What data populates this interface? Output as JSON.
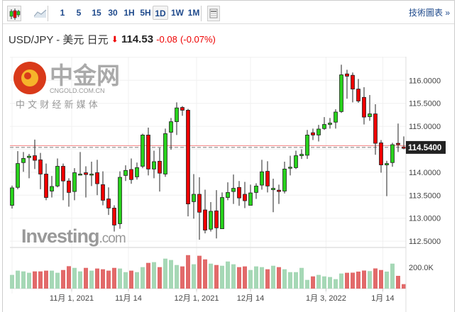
{
  "toolbar": {
    "chart_types": [
      {
        "icon": "candlestick-icon"
      },
      {
        "icon": "area-chart-icon"
      }
    ],
    "intervals": [
      "1",
      "5",
      "15",
      "30",
      "1H",
      "5H",
      "1D",
      "1W",
      "1M"
    ],
    "selected_interval": "1D",
    "layout_icon": "layout-icon",
    "tech_link": "技術圖表 »"
  },
  "header": {
    "symbol": "USD/JPY - 美元 日元",
    "direction": "down",
    "price": "114.53",
    "change": "-0.08",
    "change_pct": "(-0.07%)"
  },
  "colors": {
    "up": "#28d21c",
    "down": "#ee0000",
    "vol_up": "#a6d8b6",
    "vol_down": "#e26a6a",
    "link": "#1f4a8c"
  },
  "watermark": "Investing.com",
  "overlay_logo": {
    "name": "中金网",
    "url_text": "CNGOLD.COM.CN",
    "tagline": "中 文 财 经 新 媒 体"
  },
  "chart_data": {
    "type": "candlestick",
    "y_ticks": [
      "116.0000",
      "115.5000",
      "115.0000",
      "114.0000",
      "113.5000",
      "113.0000",
      "112.5000"
    ],
    "y_tick_values": [
      116,
      115.5,
      115,
      114,
      113.5,
      113,
      112.5
    ],
    "ylim": [
      112.4,
      116.4
    ],
    "current_price_label": "114.5400",
    "current_price": 114.54,
    "prev_line": 114.58,
    "volume_tick": "200.0K",
    "volume_tick_value": 200,
    "x_labels": [
      {
        "label": "11月 1, 2021",
        "index": 11.5
      },
      {
        "label": "11月 14",
        "index": 21.5
      },
      {
        "label": "12月 1, 2021",
        "index": 33.5
      },
      {
        "label": "12月 14",
        "index": 43
      },
      {
        "label": "1月 3, 2022",
        "index": 56.3
      },
      {
        "label": "1月 14",
        "index": 66.3
      }
    ],
    "candles": [
      [
        113.28,
        113.71,
        113.21,
        113.66,
        129
      ],
      [
        113.67,
        114.46,
        113.63,
        114.19,
        169
      ],
      [
        114.21,
        114.44,
        114.01,
        114.3,
        162
      ],
      [
        114.32,
        114.4,
        113.87,
        114.35,
        149
      ],
      [
        114.36,
        114.71,
        114.07,
        114.26,
        162
      ],
      [
        114.27,
        114.42,
        113.63,
        113.96,
        162
      ],
      [
        113.96,
        114.19,
        113.39,
        113.45,
        169
      ],
      [
        113.59,
        113.92,
        113.45,
        113.69,
        169
      ],
      [
        113.7,
        114.3,
        113.67,
        114.13,
        149
      ],
      [
        114.13,
        114.19,
        113.39,
        113.81,
        175
      ],
      [
        113.81,
        113.87,
        113.25,
        113.56,
        211
      ],
      [
        113.58,
        114.09,
        113.39,
        113.99,
        195
      ],
      [
        113.94,
        114.44,
        113.93,
        113.96,
        162
      ],
      [
        113.99,
        114.13,
        113.45,
        113.95,
        195
      ],
      [
        113.94,
        114.23,
        113.7,
        113.96,
        169
      ],
      [
        113.99,
        114.27,
        113.5,
        113.75,
        189
      ],
      [
        113.73,
        114.02,
        113.28,
        113.39,
        182
      ],
      [
        113.42,
        113.67,
        113.07,
        113.22,
        169
      ],
      [
        113.22,
        113.28,
        112.71,
        112.85,
        195
      ],
      [
        112.88,
        114.02,
        112.77,
        113.89,
        189
      ],
      [
        113.93,
        114.15,
        113.81,
        114.04,
        155
      ],
      [
        114.06,
        114.3,
        113.75,
        113.84,
        169
      ],
      [
        113.9,
        114.21,
        113.84,
        114.1,
        155
      ],
      [
        114.13,
        114.84,
        114.09,
        114.81,
        202
      ],
      [
        114.81,
        114.97,
        113.93,
        114.07,
        242
      ],
      [
        114.07,
        114.47,
        113.87,
        114.23,
        249
      ],
      [
        114.24,
        114.53,
        113.58,
        113.98,
        202
      ],
      [
        113.96,
        114.95,
        113.9,
        114.84,
        282
      ],
      [
        114.87,
        115.18,
        114.49,
        115.1,
        269
      ],
      [
        115.1,
        115.52,
        114.81,
        115.4,
        222
      ],
      [
        115.41,
        115.44,
        115.23,
        115.35,
        209
      ],
      [
        115.35,
        115.38,
        113.04,
        113.31,
        315
      ],
      [
        113.36,
        113.96,
        112.99,
        113.52,
        229
      ],
      [
        113.52,
        113.89,
        112.53,
        113.13,
        309
      ],
      [
        113.18,
        113.62,
        112.67,
        112.74,
        275
      ],
      [
        112.76,
        113.35,
        112.71,
        113.15,
        235
      ],
      [
        113.16,
        113.61,
        112.56,
        112.79,
        222
      ],
      [
        112.77,
        113.56,
        112.77,
        113.45,
        215
      ],
      [
        113.45,
        113.78,
        113.39,
        113.56,
        255
      ],
      [
        113.58,
        113.95,
        113.31,
        113.65,
        229
      ],
      [
        113.67,
        113.81,
        113.27,
        113.44,
        202
      ],
      [
        113.52,
        113.79,
        113.22,
        113.38,
        209
      ],
      [
        113.28,
        113.73,
        113.28,
        113.55,
        175
      ],
      [
        113.56,
        113.76,
        113.42,
        113.7,
        209
      ],
      [
        113.72,
        114.27,
        113.62,
        114.01,
        202
      ],
      [
        114.02,
        114.24,
        113.56,
        113.7,
        182
      ],
      [
        113.62,
        113.86,
        113.13,
        113.65,
        215
      ],
      [
        113.61,
        113.73,
        113.31,
        113.58,
        202
      ],
      [
        113.59,
        114.23,
        113.54,
        114.07,
        182
      ],
      [
        114.1,
        114.36,
        113.93,
        114.11,
        155
      ],
      [
        114.1,
        114.47,
        114.07,
        114.36,
        155
      ],
      [
        114.36,
        114.5,
        114.29,
        114.39,
        195
      ],
      [
        114.37,
        114.92,
        114.29,
        114.81,
        82
      ],
      [
        114.86,
        114.95,
        114.7,
        114.81,
        115
      ],
      [
        114.81,
        115.03,
        114.67,
        114.94,
        129
      ],
      [
        114.95,
        115.2,
        114.92,
        115.04,
        115
      ],
      [
        115.04,
        115.18,
        114.95,
        115.07,
        109
      ],
      [
        115.09,
        115.37,
        114.95,
        115.31,
        89
      ],
      [
        115.32,
        116.34,
        115.29,
        116.12,
        142
      ],
      [
        116.14,
        116.23,
        115.6,
        116.09,
        149
      ],
      [
        116.11,
        116.17,
        115.52,
        115.81,
        150
      ],
      [
        115.81,
        116.03,
        115.51,
        115.55,
        160
      ],
      [
        115.63,
        115.85,
        115.04,
        115.2,
        170
      ],
      [
        115.21,
        115.68,
        115.12,
        115.27,
        165
      ],
      [
        115.27,
        115.48,
        114.38,
        114.63,
        190
      ],
      [
        114.64,
        114.7,
        113.99,
        114.16,
        175
      ],
      [
        114.16,
        114.25,
        113.48,
        114.19,
        160
      ],
      [
        114.21,
        114.64,
        114.12,
        114.6,
        235
      ],
      [
        114.63,
        115.06,
        114.44,
        114.6,
        120
      ],
      [
        114.55,
        114.78,
        114.5,
        114.52,
        42
      ]
    ]
  }
}
